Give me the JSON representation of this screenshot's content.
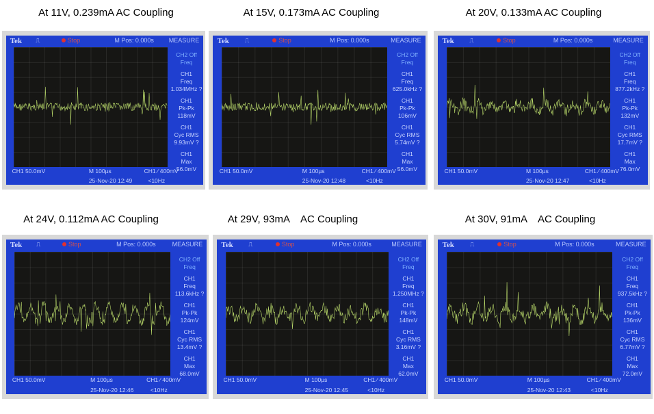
{
  "panels": [
    {
      "caption": "At 11V, 0.239mA AC Coupling",
      "brand": "Tek",
      "run_state": "Stop",
      "m_pos": "M Pos: 0.000s",
      "menu": "MEASURE",
      "m1": [
        "CH2 Off",
        "Freq"
      ],
      "m2": [
        "CH1",
        "Freq",
        "1.034MHz ?"
      ],
      "m3": [
        "CH1",
        "Pk-Pk",
        "118mV"
      ],
      "m4": [
        "CH1",
        "Cyc RMS",
        "9.93mV ?"
      ],
      "m5": [
        "CH1",
        "Max",
        "56.0mV"
      ],
      "ch_scale": "CH1  50.0mV",
      "timebase": "M 100µs",
      "datetime": "25-Nov-20 12:49",
      "trigger": "CH1 ∕ 400mV",
      "trig_freq": "<10Hz"
    },
    {
      "caption": "At 15V, 0.173mA AC Coupling",
      "brand": "Tek",
      "run_state": "Stop",
      "m_pos": "M Pos: 0.000s",
      "menu": "MEASURE",
      "m1": [
        "CH2 Off",
        "Freq"
      ],
      "m2": [
        "CH1",
        "Freq",
        "625.0kHz ?"
      ],
      "m3": [
        "CH1",
        "Pk-Pk",
        "106mV"
      ],
      "m4": [
        "CH1",
        "Cyc RMS",
        "5.74mV ?"
      ],
      "m5": [
        "CH1",
        "Max",
        "56.0mV"
      ],
      "ch_scale": "CH1  50.0mV",
      "timebase": "M 100µs",
      "datetime": "25-Nov-20 12:48",
      "trigger": "CH1 ∕ 400mV",
      "trig_freq": "<10Hz"
    },
    {
      "caption": "At 20V, 0.133mA AC Coupling",
      "brand": "Tek",
      "run_state": "Stop",
      "m_pos": "M Pos: 0.000s",
      "menu": "MEASURE",
      "m1": [
        "CH2 Off",
        "Freq"
      ],
      "m2": [
        "CH1",
        "Freq",
        "877.2kHz ?"
      ],
      "m3": [
        "CH1",
        "Pk-Pk",
        "132mV"
      ],
      "m4": [
        "CH1",
        "Cyc RMS",
        "17.7mV ?"
      ],
      "m5": [
        "CH1",
        "Max",
        "76.0mV"
      ],
      "ch_scale": "CH1  50.0mV",
      "timebase": "M 100µs",
      "datetime": "25-Nov-20 12:47",
      "trigger": "CH1 ∕ 400mV",
      "trig_freq": "<10Hz"
    },
    {
      "caption": "At 24V, 0.112mA AC Coupling",
      "brand": "Tek",
      "run_state": "Stop",
      "m_pos": "M Pos: 0.000s",
      "menu": "MEASURE",
      "m1": [
        "CH2 Off",
        "Freq"
      ],
      "m2": [
        "CH1",
        "Freq",
        "113.6kHz ?"
      ],
      "m3": [
        "CH1",
        "Pk-Pk",
        "124mV"
      ],
      "m4": [
        "CH1",
        "Cyc RMS",
        "13.4mV ?"
      ],
      "m5": [
        "CH1",
        "Max",
        "68.0mV"
      ],
      "ch_scale": "CH1  50.0mV",
      "timebase": "M 100µs",
      "datetime": "25-Nov-20 12:46",
      "trigger": "CH1 ∕ 400mV",
      "trig_freq": "<10Hz"
    },
    {
      "caption": "At 29V, 93mA    AC Coupling",
      "brand": "Tek",
      "run_state": "Stop",
      "m_pos": "M Pos: 0.000s",
      "menu": "MEASURE",
      "m1": [
        "CH2 Off",
        "Freq"
      ],
      "m2": [
        "CH1",
        "Freq",
        "1.250MHz ?"
      ],
      "m3": [
        "CH1",
        "Pk-Pk",
        "148mV"
      ],
      "m4": [
        "CH1",
        "Cyc RMS",
        "3.16mV ?"
      ],
      "m5": [
        "CH1",
        "Max",
        "62.0mV"
      ],
      "ch_scale": "CH1  50.0mV",
      "timebase": "M 100µs",
      "datetime": "25-Nov-20 12:45",
      "trigger": "CH1 ∕ 400mV",
      "trig_freq": "<10Hz"
    },
    {
      "caption": "At 30V, 91mA    AC Coupling",
      "brand": "Tek",
      "run_state": "Stop",
      "m_pos": "M Pos: 0.000s",
      "menu": "MEASURE",
      "m1": [
        "CH2 Off",
        "Freq"
      ],
      "m2": [
        "CH1",
        "Freq",
        "937.5kHz ?"
      ],
      "m3": [
        "CH1",
        "Pk-Pk",
        "136mV"
      ],
      "m4": [
        "CH1",
        "Cyc RMS",
        "6.77mV ?"
      ],
      "m5": [
        "CH1",
        "Max",
        "72.0mV"
      ],
      "ch_scale": "CH1  50.0mV",
      "timebase": "M 100µs",
      "datetime": "25-Nov-20 12:43",
      "trigger": "CH1 ∕ 400mV",
      "trig_freq": "<10Hz"
    }
  ],
  "colors": {
    "screen": "#1f3fd0",
    "trace": "#b8d86a",
    "graticule": "#161614"
  }
}
